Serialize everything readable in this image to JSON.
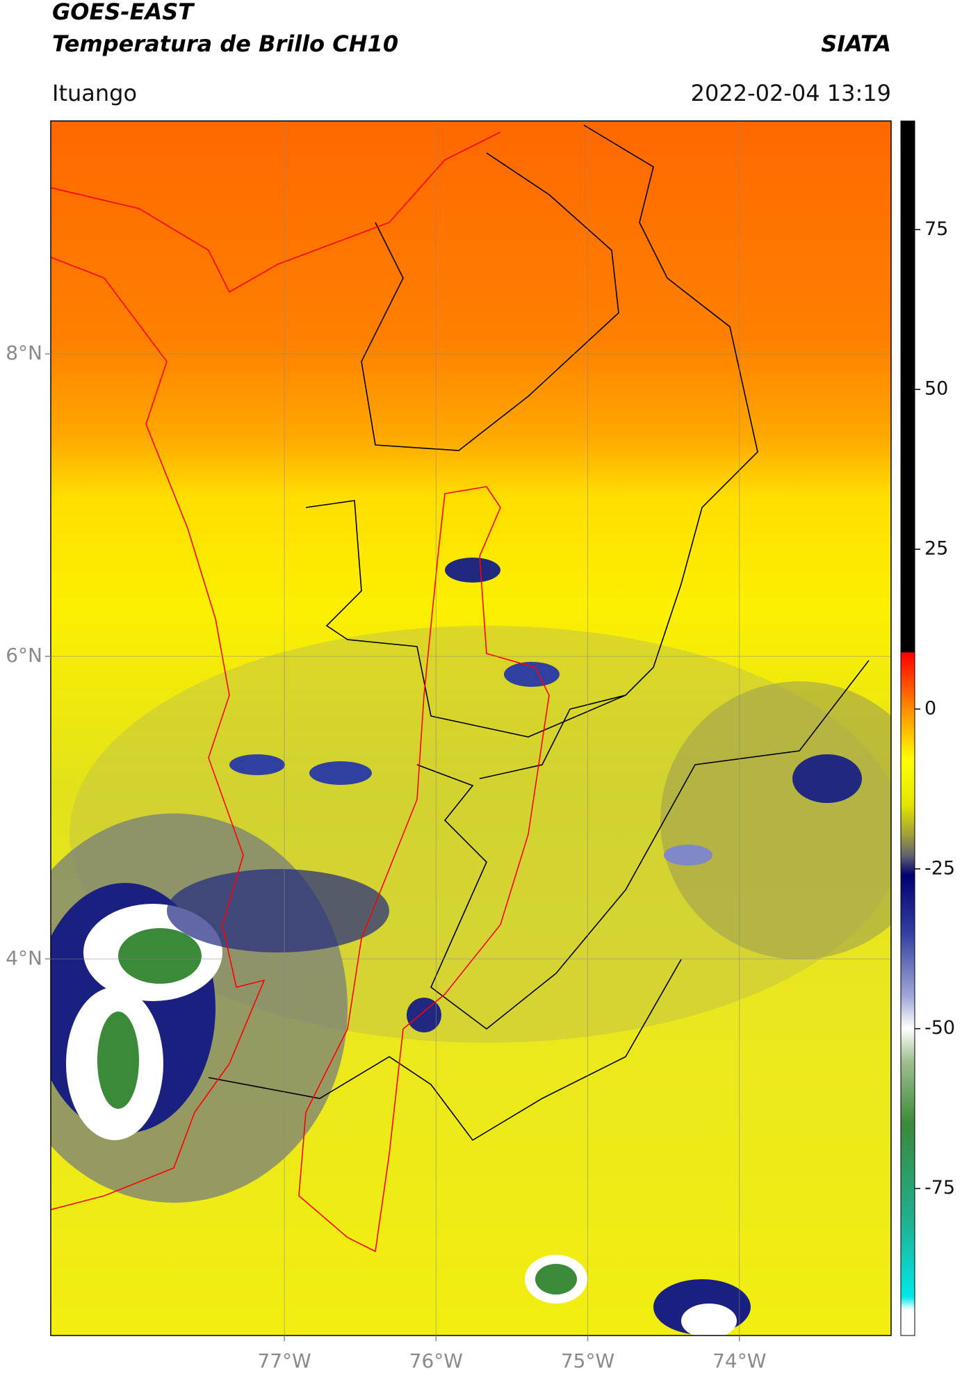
{
  "header": {
    "title": "GOES-EAST",
    "subtitle": "Temperatura de Brillo CH10",
    "org": "SIATA",
    "location": "Ituango",
    "datetime": "2022-02-04 13:19"
  },
  "map": {
    "xlim": [
      -78.54,
      -73.0
    ],
    "ylim": [
      1.51,
      9.54
    ],
    "lat_ticks": [
      {
        "value": 8,
        "label": "8°N"
      },
      {
        "value": 6,
        "label": "6°N"
      },
      {
        "value": 4,
        "label": "4°N"
      }
    ],
    "lon_ticks": [
      {
        "value": -77,
        "label": "77°W"
      },
      {
        "value": -76,
        "label": "76°W"
      },
      {
        "value": -75,
        "label": "75°W"
      },
      {
        "value": -74,
        "label": "74°W"
      }
    ],
    "grid": true
  },
  "colorbar": {
    "clim": [
      -98,
      92
    ],
    "ticks": [
      75,
      50,
      25,
      0,
      -25,
      -50,
      -75
    ]
  }
}
